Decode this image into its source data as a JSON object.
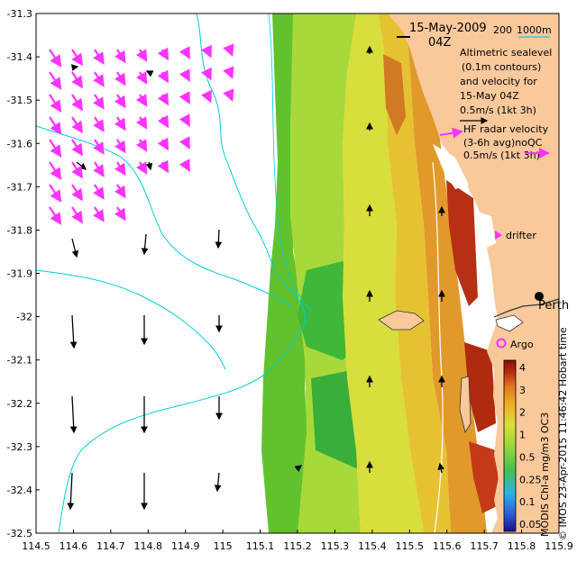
{
  "map": {
    "date_label": "15-May-2009",
    "time_label": "04Z",
    "depth_legend": {
      "label_200": "200",
      "label_1000": "1000m",
      "color_200": "#000000",
      "color_1000": "#66cccc"
    },
    "altimetry_legend": {
      "lines": [
        "Altimetric sealevel",
        "(0.1m contours)",
        "and velocity for",
        "15-May 04Z",
        "0.5m/s (1kt 3h)"
      ],
      "arrow_color": "#000000"
    },
    "hf_legend": {
      "lines": [
        "HF radar velocity",
        "(3-6h avg)noQC",
        "0.5m/s (1kt 3h)"
      ],
      "arrow_color": "#ff33ff"
    },
    "drifter_label": "drifter",
    "city_label": "Perth",
    "argo_label": "Argo",
    "colorbar": {
      "ticks": [
        "4",
        "3",
        "2",
        "1",
        "0.5",
        "0.25",
        "0.1",
        "0.05"
      ],
      "title": "MODIS Chl-a mg/m3 OC3"
    },
    "credit": "© IMOS 23-Apr-2015 11:46:42 Hobart time",
    "colors": {
      "land": "#f9c89b",
      "coastline_color": "#00ccdd",
      "hf_arrow": "#ff33ff",
      "sat_arrow": "#000000"
    }
  },
  "chart_data": {
    "type": "map",
    "xlim": [
      114.5,
      115.9
    ],
    "ylim": [
      -32.5,
      -31.3
    ],
    "x_ticks": [
      "114.5",
      "114.6",
      "114.7",
      "114.8",
      "114.9",
      "115",
      "115.1",
      "115.2",
      "115.3",
      "115.4",
      "115.5",
      "115.6",
      "115.7",
      "115.8",
      "115.9"
    ],
    "y_ticks": [
      "-31.3",
      "-31.4",
      "-31.5",
      "-31.6",
      "-31.7",
      "-31.8",
      "-31.9",
      "-32",
      "-32.1",
      "-32.2",
      "-32.3",
      "-32.4",
      "-32.5"
    ],
    "colorscale": [
      "#1a0f8c",
      "#2f5bd6",
      "#2bb0e8",
      "#43c24e",
      "#9bd63b",
      "#d8df38",
      "#efb026",
      "#e0741f",
      "#b82b10",
      "#8c0a08"
    ]
  }
}
